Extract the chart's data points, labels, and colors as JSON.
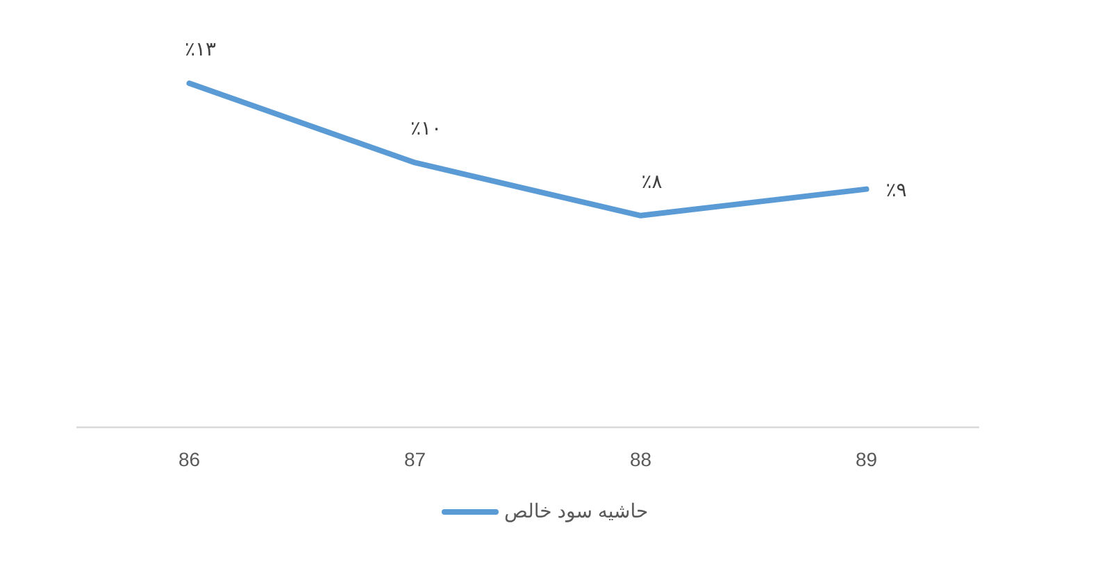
{
  "chart_data": {
    "type": "line",
    "categories": [
      "86",
      "87",
      "88",
      "89"
    ],
    "series": [
      {
        "name": "حاشیه سود خالص",
        "color": "#5b9bd5",
        "values": [
          13,
          10,
          8,
          9
        ],
        "value_labels": [
          "٪۱۳",
          "٪۱۰",
          "٪۸",
          "٪۹"
        ]
      }
    ],
    "tick_labels": "x",
    "legend": "bottom",
    "marker": "none",
    "line_style": "solid"
  }
}
